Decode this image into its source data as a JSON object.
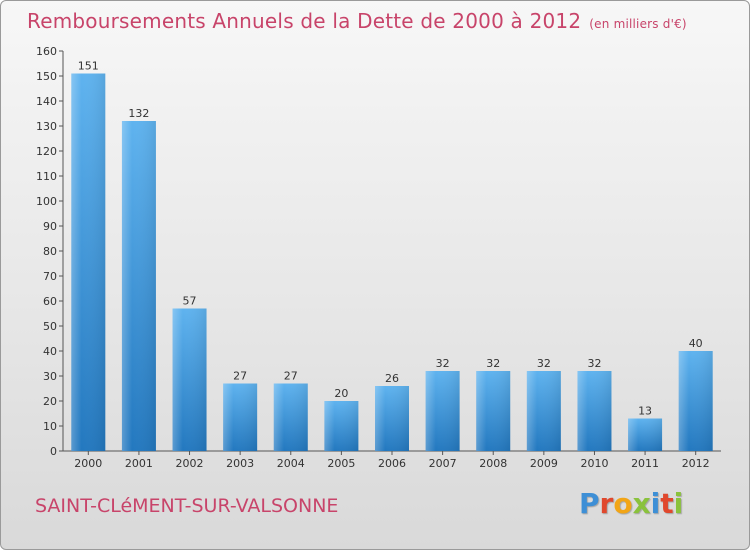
{
  "header": {
    "title": "Remboursements Annuels de la Dette de 2000 à 2012",
    "unit": "(en milliers d'€)"
  },
  "footer": {
    "commune": "SAINT-CLéMENT-SUR-VALSONNE",
    "logo_letters": [
      {
        "ch": "P",
        "color": "#3d8fd6"
      },
      {
        "ch": "r",
        "color": "#e0482d"
      },
      {
        "ch": "o",
        "color": "#f2a516"
      },
      {
        "ch": "x",
        "color": "#8ac23c"
      },
      {
        "ch": "i",
        "color": "#3d8fd6"
      },
      {
        "ch": "t",
        "color": "#e0482d"
      },
      {
        "ch": "i",
        "color": "#8ac23c"
      }
    ]
  },
  "chart_data": {
    "type": "bar",
    "title": "Remboursements Annuels de la Dette de 2000 à 2012",
    "subtitle": "(en milliers d'€)",
    "categories": [
      "2000",
      "2001",
      "2002",
      "2003",
      "2004",
      "2005",
      "2006",
      "2007",
      "2008",
      "2009",
      "2010",
      "2011",
      "2012"
    ],
    "values": [
      151,
      132,
      57,
      27,
      27,
      20,
      26,
      32,
      32,
      32,
      32,
      13,
      40
    ],
    "ylim": [
      0,
      160
    ],
    "yticks": [
      0,
      10,
      20,
      30,
      40,
      50,
      60,
      70,
      80,
      90,
      100,
      110,
      120,
      130,
      140,
      150,
      160
    ],
    "grid": false,
    "bar_color": "#3a8fd8"
  }
}
